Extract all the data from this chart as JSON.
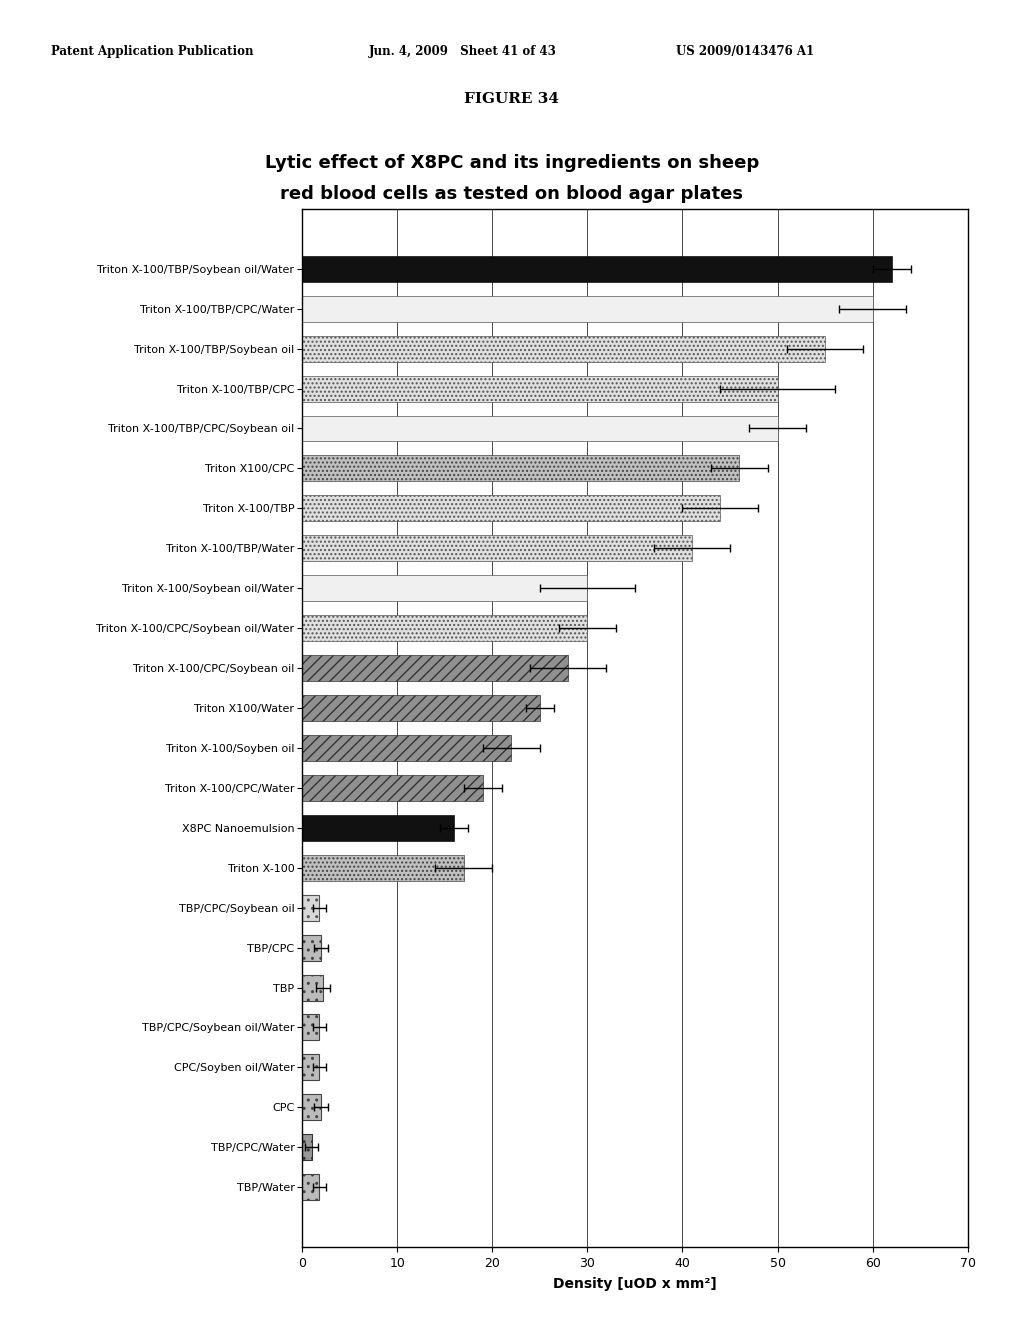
{
  "title_line1": "Lytic effect of X8PC and its ingredients on sheep",
  "title_line2": "red blood cells as tested on blood agar plates",
  "figure_title": "FIGURE 34",
  "header_left": "Patent Application Publication",
  "header_mid": "Jun. 4, 2009   Sheet 41 of 43",
  "header_right": "US 2009/0143476 A1",
  "xlabel": "Density [uOD x mm²]",
  "xlim": [
    0,
    70
  ],
  "xticks": [
    0,
    10,
    20,
    30,
    40,
    50,
    60,
    70
  ],
  "categories": [
    "Triton X-100/TBP/Soybean oil/Water",
    "Triton X-100/TBP/CPC/Water",
    "Triton X-100/TBP/Soybean oil",
    "Triton X-100/TBP/CPC",
    "Triton X-100/TBP/CPC/Soybean oil",
    "Triton X100/CPC",
    "Triton X-100/TBP",
    "Triton X-100/TBP/Water",
    "Triton X-100/Soybean oil/Water",
    "Triton X-100/CPC/Soybean oil/Water",
    "Triton X-100/CPC/Soybean oil",
    "Triton X100/Water",
    "Triton X-100/Soyben oil",
    "Triton X-100/CPC/Water",
    "X8PC Nanoemulsion",
    "Triton X-100",
    "TBP/CPC/Soybean oil",
    "TBP/CPC",
    "TBP",
    "TBP/CPC/Soybean oil/Water",
    "CPC/Soyben oil/Water",
    "CPC",
    "TBP/CPC/Water",
    "TBP/Water"
  ],
  "values": [
    62,
    60,
    55,
    50,
    50,
    46,
    44,
    41,
    30,
    30,
    28,
    25,
    22,
    19,
    16,
    17,
    1.8,
    2.0,
    2.2,
    1.8,
    1.8,
    2.0,
    1.0,
    1.8
  ],
  "errors": [
    2.0,
    3.5,
    4.0,
    6.0,
    3.0,
    3.0,
    4.0,
    4.0,
    5.0,
    3.0,
    4.0,
    1.5,
    3.0,
    2.0,
    1.5,
    3.0,
    0.7,
    0.7,
    0.7,
    0.7,
    0.7,
    0.7,
    0.7,
    0.7
  ],
  "bar_styles": [
    "solid_black",
    "white_plain",
    "light_speckled",
    "light_speckled",
    "white_plain",
    "medium_speckled",
    "light_speckled",
    "light_speckled",
    "white_plain",
    "light_speckled",
    "dark_speckled",
    "dark_speckled",
    "dark_speckled",
    "dark_speckled",
    "solid_black",
    "medium_speckled",
    "light_box",
    "medium_box",
    "medium_box",
    "medium_box",
    "medium_box",
    "medium_box",
    "dark_box",
    "medium_box"
  ],
  "bg_color": "#ffffff",
  "title_fontsize": 13,
  "label_fontsize": 8.5,
  "axis_fontsize": 10
}
